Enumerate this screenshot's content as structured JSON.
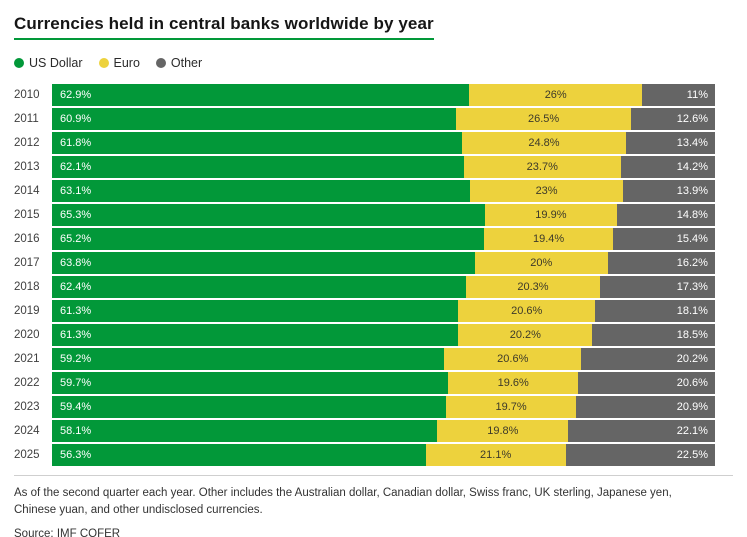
{
  "title": "Currencies held in central banks worldwide by year",
  "chart_data": {
    "type": "bar",
    "stacked": true,
    "orientation": "horizontal",
    "title": "Currencies held in central banks worldwide by year",
    "value_suffix": "%",
    "xlim": [
      0,
      100
    ],
    "legend_position": "top-left",
    "grid": false,
    "categories": [
      "2010",
      "2011",
      "2012",
      "2013",
      "2014",
      "2015",
      "2016",
      "2017",
      "2018",
      "2019",
      "2020",
      "2021",
      "2022",
      "2023",
      "2024",
      "2025"
    ],
    "series": [
      {
        "name": "US Dollar",
        "color": "#029839",
        "text_color": "#ffffff",
        "values": [
          62.9,
          60.9,
          61.8,
          62.1,
          63.1,
          65.3,
          65.2,
          63.8,
          62.4,
          61.3,
          61.3,
          59.2,
          59.7,
          59.4,
          58.1,
          56.3
        ]
      },
      {
        "name": "Euro",
        "color": "#edd23d",
        "text_color": "#3d3a2a",
        "values": [
          26,
          26.5,
          24.8,
          23.7,
          23,
          19.9,
          19.4,
          20,
          20.3,
          20.6,
          20.2,
          20.6,
          19.6,
          19.7,
          19.8,
          21.1
        ]
      },
      {
        "name": "Other",
        "color": "#656565",
        "text_color": "#ffffff",
        "values": [
          11,
          12.6,
          13.4,
          14.2,
          13.9,
          14.8,
          15.4,
          16.2,
          17.3,
          18.1,
          18.5,
          20.2,
          20.6,
          20.9,
          22.1,
          22.5
        ]
      }
    ]
  },
  "footnote": "As of the second quarter each year. Other includes the Australian dollar, Canadian dollar, Swiss franc, UK sterling, Japanese yen, Chinese yuan, and other undisclosed currencies.",
  "source": "Source: IMF COFER"
}
